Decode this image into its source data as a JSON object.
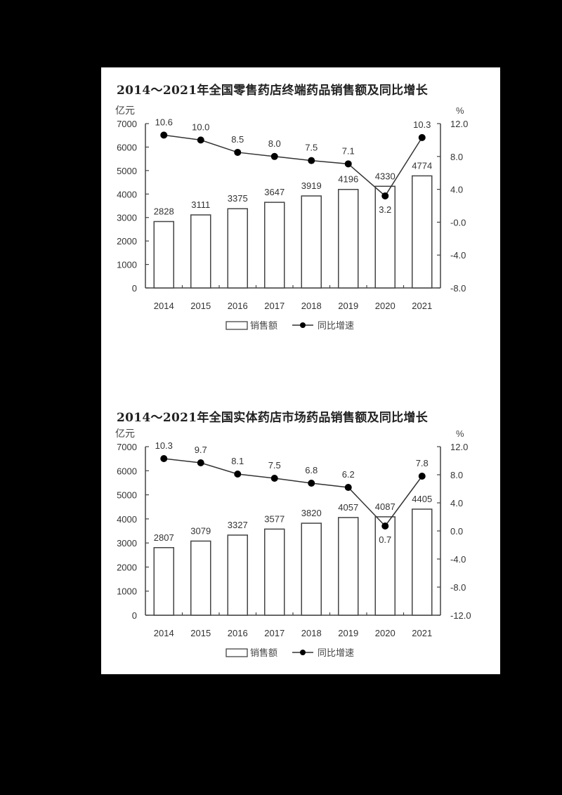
{
  "chart_data": [
    {
      "type": "bar",
      "title": "2014～2021年全国零售药店终端药品销售额及同比增长",
      "categories": [
        "2014",
        "2015",
        "2016",
        "2017",
        "2018",
        "2019",
        "2020",
        "2021"
      ],
      "series": [
        {
          "name": "销售额",
          "type": "bar",
          "axis": "left",
          "values": [
            2828,
            3111,
            3375,
            3647,
            3919,
            4196,
            4330,
            4774
          ]
        },
        {
          "name": "同比增速",
          "type": "line",
          "axis": "right",
          "values": [
            10.6,
            10.0,
            8.5,
            8.0,
            7.5,
            7.1,
            3.2,
            10.3
          ]
        }
      ],
      "ylabel": "亿元",
      "y2label": "%",
      "ylim": [
        0,
        7000
      ],
      "yticks": [
        0,
        1000,
        2000,
        3000,
        4000,
        5000,
        6000,
        7000
      ],
      "y2lim": [
        -8.0,
        12.0
      ],
      "y2ticks": [
        "-8.0",
        "-4.0",
        "-0.0",
        "4.0",
        "8.0",
        "12.0"
      ],
      "legend": [
        "销售额",
        "同比增速"
      ],
      "legend_position": "bottom",
      "grid": false
    },
    {
      "type": "bar",
      "title": "2014～2021年全国实体药店市场药品销售额及同比增长",
      "categories": [
        "2014",
        "2015",
        "2016",
        "2017",
        "2018",
        "2019",
        "2020",
        "2021"
      ],
      "series": [
        {
          "name": "销售额",
          "type": "bar",
          "axis": "left",
          "values": [
            2807,
            3079,
            3327,
            3577,
            3820,
            4057,
            4087,
            4405
          ]
        },
        {
          "name": "同比增速",
          "type": "line",
          "axis": "right",
          "values": [
            10.3,
            9.7,
            8.1,
            7.5,
            6.8,
            6.2,
            0.7,
            7.8
          ]
        }
      ],
      "ylabel": "亿元",
      "y2label": "%",
      "ylim": [
        0,
        7000
      ],
      "yticks": [
        0,
        1000,
        2000,
        3000,
        4000,
        5000,
        6000,
        7000
      ],
      "y2lim": [
        -12.0,
        12.0
      ],
      "y2ticks": [
        "-12.0",
        "-8.0",
        "-4.0",
        "0.0",
        "4.0",
        "8.0",
        "12.0"
      ],
      "legend": [
        "销售额",
        "同比增速"
      ],
      "legend_position": "bottom",
      "grid": false
    }
  ]
}
